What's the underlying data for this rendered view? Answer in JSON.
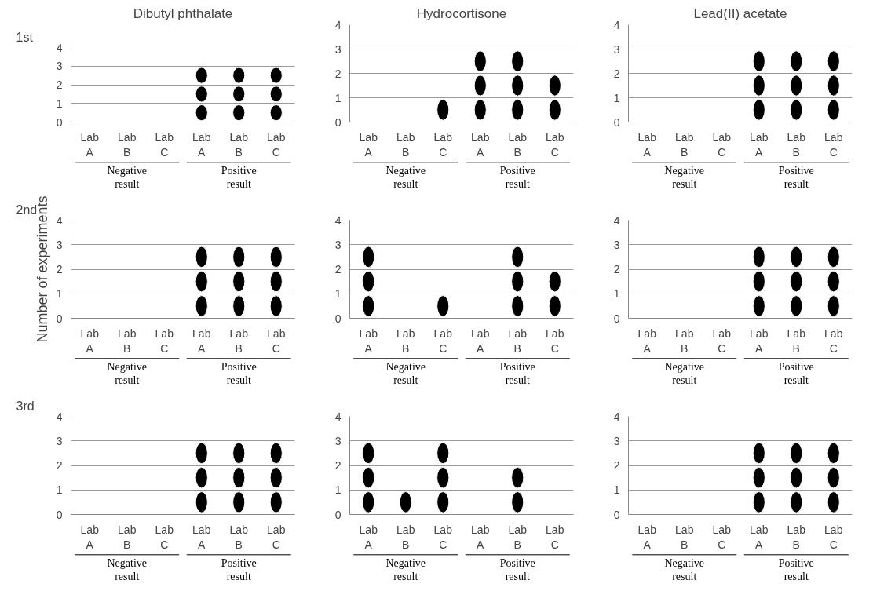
{
  "chart_data": [
    {
      "type": "scatter",
      "title": "Dibutyl phthalate",
      "categories": [
        "Lab A",
        "Lab B",
        "Lab C",
        "Lab A",
        "Lab B",
        "Lab C"
      ],
      "annotations": [
        "1st",
        "Negative result",
        "Positive result"
      ],
      "ylim": [
        0,
        4
      ],
      "yticks": [
        0,
        1,
        2,
        3,
        4
      ],
      "grid": "y",
      "marker": "circle",
      "series": [
        {
          "color": "#000000",
          "values": [
            null,
            null,
            null,
            0.5,
            0.5,
            0.5
          ]
        },
        {
          "color": "#000000",
          "values": [
            null,
            null,
            null,
            1.5,
            1.5,
            1.5
          ]
        },
        {
          "color": "#000000",
          "values": [
            null,
            null,
            null,
            2.5,
            2.5,
            2.5
          ]
        }
      ]
    },
    {
      "type": "scatter",
      "title": "Hydrocortisone",
      "categories": [
        "Lab A",
        "Lab B",
        "Lab C",
        "Lab A",
        "Lab B",
        "Lab C"
      ],
      "annotations": [
        "Negative result",
        "Positive result"
      ],
      "ylim": [
        0,
        4
      ],
      "yticks": [
        0,
        1,
        2,
        3,
        4
      ],
      "grid": "y",
      "marker": "circle",
      "series": [
        {
          "color": "#000000",
          "values": [
            null,
            null,
            0.5,
            0.5,
            0.5,
            0.5
          ]
        },
        {
          "color": "#000000",
          "values": [
            null,
            null,
            null,
            1.5,
            1.5,
            1.5
          ]
        },
        {
          "color": "#000000",
          "values": [
            null,
            null,
            null,
            2.5,
            2.5,
            null
          ]
        }
      ]
    },
    {
      "type": "scatter",
      "title": "Lead(II) acetate",
      "categories": [
        "Lab A",
        "Lab B",
        "Lab C",
        "Lab A",
        "Lab B",
        "Lab C"
      ],
      "annotations": [
        "Negative result",
        "Positive result"
      ],
      "ylim": [
        0,
        4
      ],
      "yticks": [
        0,
        1,
        2,
        3,
        4
      ],
      "grid": "y",
      "marker": "circle",
      "series": [
        {
          "color": "#000000",
          "values": [
            null,
            null,
            null,
            0.5,
            0.5,
            0.5
          ]
        },
        {
          "color": "#000000",
          "values": [
            null,
            null,
            null,
            1.5,
            1.5,
            1.5
          ]
        },
        {
          "color": "#000000",
          "values": [
            null,
            null,
            null,
            2.5,
            2.5,
            2.5
          ]
        }
      ]
    },
    {
      "type": "scatter",
      "ylabel": "Number of experiments",
      "categories": [
        "Lab A",
        "Lab B",
        "Lab C",
        "Lab A",
        "Lab B",
        "Lab C"
      ],
      "annotations": [
        "2nd",
        "Negative result",
        "Positive result"
      ],
      "ylim": [
        0,
        4
      ],
      "yticks": [
        0,
        1,
        2,
        3,
        4
      ],
      "grid": "y",
      "marker": "circle",
      "series": [
        {
          "color": "#000000",
          "values": [
            null,
            null,
            null,
            0.5,
            0.5,
            0.5
          ]
        },
        {
          "color": "#000000",
          "values": [
            null,
            null,
            null,
            1.5,
            1.5,
            1.5
          ]
        },
        {
          "color": "#000000",
          "values": [
            null,
            null,
            null,
            2.5,
            2.5,
            2.5
          ]
        }
      ]
    },
    {
      "type": "scatter",
      "categories": [
        "Lab A",
        "Lab B",
        "Lab C",
        "Lab A",
        "Lab B",
        "Lab C"
      ],
      "annotations": [
        "Negative result",
        "Positive result"
      ],
      "ylim": [
        0,
        4
      ],
      "yticks": [
        0,
        1,
        2,
        3,
        4
      ],
      "grid": "y",
      "marker": "circle",
      "series": [
        {
          "color": "#000000",
          "values": [
            0.5,
            null,
            0.5,
            null,
            0.5,
            0.5
          ]
        },
        {
          "color": "#000000",
          "values": [
            1.5,
            null,
            null,
            null,
            1.5,
            1.5
          ]
        },
        {
          "color": "#000000",
          "values": [
            2.5,
            null,
            null,
            null,
            2.5,
            null
          ]
        }
      ]
    },
    {
      "type": "scatter",
      "categories": [
        "Lab A",
        "Lab B",
        "Lab C",
        "Lab A",
        "Lab B",
        "Lab C"
      ],
      "annotations": [
        "Negative result",
        "Positive result"
      ],
      "ylim": [
        0,
        4
      ],
      "yticks": [
        0,
        1,
        2,
        3,
        4
      ],
      "grid": "y",
      "marker": "circle",
      "series": [
        {
          "color": "#000000",
          "values": [
            null,
            null,
            null,
            0.5,
            0.5,
            0.5
          ]
        },
        {
          "color": "#000000",
          "values": [
            null,
            null,
            null,
            1.5,
            1.5,
            1.5
          ]
        },
        {
          "color": "#000000",
          "values": [
            null,
            null,
            null,
            2.5,
            2.5,
            2.5
          ]
        }
      ]
    },
    {
      "type": "scatter",
      "categories": [
        "Lab A",
        "Lab B",
        "Lab C",
        "Lab A",
        "Lab B",
        "Lab C"
      ],
      "annotations": [
        "3rd",
        "Negative result",
        "Positive result"
      ],
      "ylim": [
        0,
        4
      ],
      "yticks": [
        0,
        1,
        2,
        3,
        4
      ],
      "grid": "y",
      "marker": "circle",
      "series": [
        {
          "color": "#000000",
          "values": [
            null,
            null,
            null,
            0.5,
            0.5,
            0.5
          ]
        },
        {
          "color": "#000000",
          "values": [
            null,
            null,
            null,
            1.5,
            1.5,
            1.5
          ]
        },
        {
          "color": "#000000",
          "values": [
            null,
            null,
            null,
            2.5,
            2.5,
            2.5
          ]
        }
      ]
    },
    {
      "type": "scatter",
      "categories": [
        "Lab A",
        "Lab B",
        "Lab C",
        "Lab A",
        "Lab B",
        "Lab C"
      ],
      "annotations": [
        "Negative result",
        "Positive result"
      ],
      "ylim": [
        0,
        4
      ],
      "yticks": [
        0,
        1,
        2,
        3,
        4
      ],
      "grid": "y",
      "marker": "circle",
      "series": [
        {
          "color": "#000000",
          "values": [
            0.5,
            0.5,
            0.5,
            null,
            0.5,
            null
          ]
        },
        {
          "color": "#000000",
          "values": [
            1.5,
            null,
            1.5,
            null,
            1.5,
            null
          ]
        },
        {
          "color": "#000000",
          "values": [
            2.5,
            null,
            2.5,
            null,
            null,
            null
          ]
        }
      ]
    },
    {
      "type": "scatter",
      "categories": [
        "Lab A",
        "Lab B",
        "Lab C",
        "Lab A",
        "Lab B",
        "Lab C"
      ],
      "annotations": [
        "Negative result",
        "Positive result"
      ],
      "ylim": [
        0,
        4
      ],
      "yticks": [
        0,
        1,
        2,
        3,
        4
      ],
      "grid": "y",
      "marker": "circle",
      "series": [
        {
          "color": "#000000",
          "values": [
            null,
            null,
            null,
            0.5,
            0.5,
            0.5
          ]
        },
        {
          "color": "#000000",
          "values": [
            null,
            null,
            null,
            1.5,
            1.5,
            1.5
          ]
        },
        {
          "color": "#000000",
          "values": [
            null,
            null,
            null,
            2.5,
            2.5,
            2.5
          ]
        }
      ]
    }
  ]
}
